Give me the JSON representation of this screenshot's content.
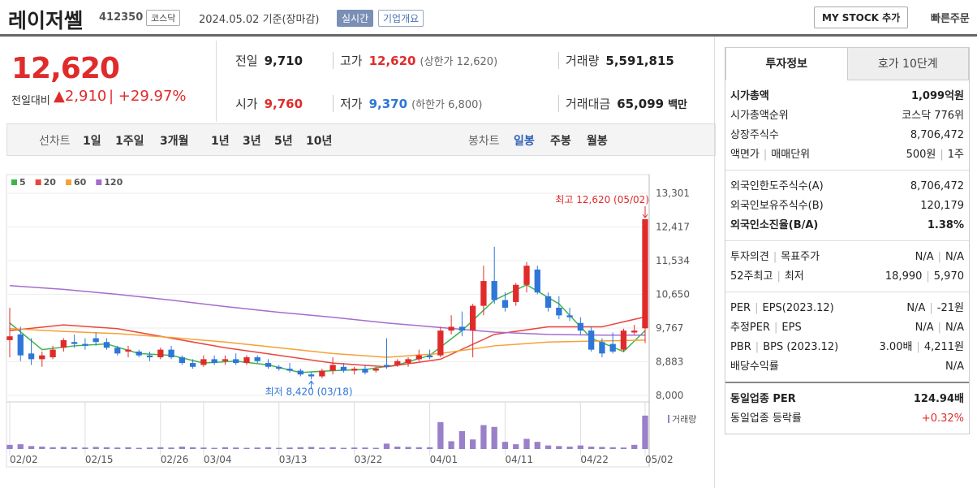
{
  "header": {
    "name": "레이저쎌",
    "code": "412350",
    "market": "코스닥",
    "date": "2024.05.02 기준(장마감)",
    "realtime": "실시간",
    "company": "기업개요",
    "mystock": "MY STOCK 추가",
    "quick": "빠른주문"
  },
  "quote": {
    "price": "12,620",
    "change_label": "전일대비",
    "change": "2,910",
    "rate": "+29.97%",
    "stats": [
      [
        {
          "label": "전일",
          "value": "9,710"
        },
        {
          "label": "고가",
          "value": "12,620",
          "note": "(상한가 12,620)"
        },
        {
          "label": "거래량",
          "value": "5,591,815"
        }
      ],
      [
        {
          "label": "시가",
          "value": "9,760"
        },
        {
          "label": "저가",
          "value": "9,370",
          "note": "(하한가 6,800)"
        },
        {
          "label": "거래대금",
          "value": "65,099",
          "unit": "백만"
        }
      ]
    ]
  },
  "tabs": {
    "line_label": "선차트",
    "line": [
      "1일",
      "1주일",
      "3개월",
      "1년",
      "3년",
      "5년",
      "10년"
    ],
    "candle_label": "봉차트",
    "candle": [
      "일봉",
      "주봉",
      "월봉"
    ]
  },
  "chart_data": {
    "type": "candlestick",
    "up_color": "#e02b2b",
    "down_color": "#2e76d8",
    "ylim": [
      8000,
      13301
    ],
    "yticks": [
      {
        "value": 8000,
        "label": "8,000"
      },
      {
        "value": 8883,
        "label": "8,883"
      },
      {
        "value": 9767,
        "label": "9,767"
      },
      {
        "value": 10650,
        "label": "10,650"
      },
      {
        "value": 11534,
        "label": "11,534"
      },
      {
        "value": 12417,
        "label": "12,417"
      },
      {
        "value": 13301,
        "label": "13,301"
      }
    ],
    "xlim": [
      0,
      59
    ],
    "xticks": [
      {
        "value": 0,
        "label": "02/02"
      },
      {
        "value": 7,
        "label": "02/15"
      },
      {
        "value": 14,
        "label": "02/26"
      },
      {
        "value": 18,
        "label": "03/04"
      },
      {
        "value": 25,
        "label": "03/13"
      },
      {
        "value": 32,
        "label": "03/22"
      },
      {
        "value": 39,
        "label": "04/01"
      },
      {
        "value": 46,
        "label": "04/11"
      },
      {
        "value": 53,
        "label": "04/22"
      },
      {
        "value": 59,
        "label": "05/02"
      }
    ],
    "ohlc": [
      [
        9450,
        10300,
        9000,
        9550
      ],
      [
        9600,
        9800,
        8900,
        9050
      ],
      [
        9100,
        9500,
        8800,
        8950
      ],
      [
        8950,
        9150,
        8750,
        9050
      ],
      [
        9000,
        9300,
        8950,
        9200
      ],
      [
        9250,
        9500,
        9150,
        9450
      ],
      [
        9400,
        9600,
        9250,
        9350
      ],
      [
        9350,
        9500,
        9200,
        9300
      ],
      [
        9500,
        9650,
        9300,
        9400
      ],
      [
        9400,
        9500,
        9200,
        9250
      ],
      [
        9250,
        9300,
        9050,
        9100
      ],
      [
        9150,
        9300,
        9000,
        9200
      ],
      [
        9150,
        9200,
        9000,
        9050
      ],
      [
        9050,
        9150,
        8900,
        9000
      ],
      [
        9000,
        9250,
        8950,
        9200
      ],
      [
        9200,
        9300,
        8950,
        9000
      ],
      [
        9000,
        9050,
        8800,
        8850
      ],
      [
        8850,
        8950,
        8700,
        8750
      ],
      [
        8800,
        9050,
        8750,
        8950
      ],
      [
        8950,
        9050,
        8800,
        8850
      ],
      [
        8900,
        9050,
        8800,
        8950
      ],
      [
        8950,
        9100,
        8800,
        8850
      ],
      [
        8850,
        9050,
        8800,
        9000
      ],
      [
        9000,
        9050,
        8850,
        8900
      ],
      [
        8850,
        8950,
        8700,
        8750
      ],
      [
        8750,
        8800,
        8650,
        8700
      ],
      [
        8700,
        8850,
        8600,
        8650
      ],
      [
        8650,
        8700,
        8500,
        8550
      ],
      [
        8550,
        8600,
        8420,
        8500
      ],
      [
        8500,
        8700,
        8450,
        8650
      ],
      [
        8650,
        9000,
        8550,
        8800
      ],
      [
        8750,
        8850,
        8600,
        8650
      ],
      [
        8650,
        8750,
        8550,
        8700
      ],
      [
        8700,
        8800,
        8550,
        8600
      ],
      [
        8650,
        8750,
        8600,
        8700
      ],
      [
        8800,
        9500,
        8700,
        8750
      ],
      [
        8800,
        8950,
        8750,
        8900
      ],
      [
        8850,
        9000,
        8750,
        8950
      ],
      [
        8950,
        9200,
        8900,
        9050
      ],
      [
        9050,
        9200,
        8950,
        9000
      ],
      [
        9050,
        9800,
        9000,
        9700
      ],
      [
        9700,
        10100,
        9600,
        9800
      ],
      [
        9800,
        10200,
        9550,
        9700
      ],
      [
        9700,
        10400,
        9000,
        10350
      ],
      [
        10350,
        11400,
        10100,
        11000
      ],
      [
        11000,
        11900,
        10400,
        10500
      ],
      [
        10500,
        10700,
        10200,
        10300
      ],
      [
        10450,
        10950,
        10350,
        10900
      ],
      [
        10900,
        11500,
        10700,
        11400
      ],
      [
        11300,
        11400,
        10650,
        10700
      ],
      [
        10600,
        10700,
        10200,
        10300
      ],
      [
        10300,
        10600,
        10000,
        10100
      ],
      [
        10100,
        10300,
        9950,
        10050
      ],
      [
        9900,
        10050,
        9600,
        9700
      ],
      [
        9700,
        9800,
        9150,
        9200
      ],
      [
        9400,
        9500,
        9000,
        9100
      ],
      [
        9350,
        9650,
        9100,
        9150
      ],
      [
        9200,
        9750,
        9150,
        9700
      ],
      [
        9650,
        9850,
        9600,
        9700
      ],
      [
        9760,
        12620,
        9370,
        12620
      ]
    ],
    "series": [
      {
        "name": "5",
        "color": "#3cb64b",
        "x": [
          0,
          3,
          6,
          9,
          12,
          15,
          18,
          21,
          24,
          27,
          30,
          33,
          36,
          39,
          42,
          45,
          48,
          51,
          54,
          57,
          59
        ],
        "values": [
          9900,
          9200,
          9300,
          9350,
          9100,
          9050,
          8850,
          8900,
          8800,
          8600,
          8650,
          8680,
          8800,
          9050,
          9700,
          10500,
          10900,
          10400,
          9500,
          9150,
          9700
        ]
      },
      {
        "name": "20",
        "color": "#e8463d",
        "x": [
          0,
          5,
          10,
          15,
          20,
          25,
          30,
          35,
          40,
          45,
          50,
          55,
          59
        ],
        "values": [
          9700,
          9850,
          9750,
          9500,
          9250,
          9050,
          8850,
          8750,
          8950,
          9600,
          9800,
          9800,
          10060
        ]
      },
      {
        "name": "60",
        "color": "#f7a035",
        "x": [
          0,
          5,
          10,
          15,
          20,
          25,
          30,
          35,
          40,
          45,
          50,
          55,
          59
        ],
        "values": [
          9750,
          9680,
          9620,
          9520,
          9400,
          9250,
          9100,
          9000,
          9100,
          9300,
          9400,
          9430,
          9450
        ]
      },
      {
        "name": "120",
        "color": "#a46cd0",
        "x": [
          0,
          5,
          10,
          15,
          20,
          25,
          30,
          35,
          40,
          45,
          50,
          55,
          59
        ],
        "values": [
          10880,
          10780,
          10650,
          10500,
          10330,
          10180,
          10050,
          9900,
          9780,
          9660,
          9600,
          9580,
          9580
        ]
      }
    ],
    "volume": {
      "name": "거래량",
      "color": "#9a7fc9",
      "lim": [
        0,
        7200000
      ],
      "values": [
        700000,
        800000,
        500000,
        400000,
        300000,
        350000,
        300000,
        250000,
        350000,
        300000,
        250000,
        300000,
        200000,
        250000,
        300000,
        250000,
        400000,
        300000,
        250000,
        200000,
        300000,
        250000,
        200000,
        250000,
        300000,
        200000,
        250000,
        300000,
        350000,
        250000,
        300000,
        200000,
        250000,
        250000,
        200000,
        900000,
        400000,
        350000,
        300000,
        300000,
        4500000,
        1300000,
        3000000,
        1600000,
        4000000,
        3700000,
        1200000,
        800000,
        1700000,
        1200000,
        600000,
        500000,
        400000,
        600000,
        400000,
        350000,
        300000,
        250000,
        700000,
        5591815
      ]
    },
    "annotations": [
      {
        "text": "최고 12,620 (05/02)",
        "x": 59,
        "y": 12620
      },
      {
        "text": "최저 8,420 (03/18)",
        "x": 28,
        "y": 8420
      }
    ]
  },
  "panel": {
    "tabs": [
      "투자정보",
      "호가 10단계"
    ],
    "sections": [
      [
        {
          "label": [
            "시가총액"
          ],
          "value": [
            "1,099억원"
          ],
          "bold": true
        },
        {
          "label": [
            "시가총액순위"
          ],
          "value": [
            "코스닥 776위"
          ]
        },
        {
          "label": [
            "상장주식수"
          ],
          "value": [
            "8,706,472"
          ]
        },
        {
          "label": [
            "액면가",
            "매매단위"
          ],
          "value": [
            "500원",
            "1주"
          ]
        }
      ],
      [
        {
          "label": [
            "외국인한도주식수(A)"
          ],
          "value": [
            "8,706,472"
          ]
        },
        {
          "label": [
            "외국인보유주식수(B)"
          ],
          "value": [
            "120,179"
          ]
        },
        {
          "label": [
            "외국인소진율(B/A)"
          ],
          "value": [
            "1.38%"
          ],
          "bold": true
        }
      ],
      [
        {
          "label": [
            "투자의견",
            "목표주가"
          ],
          "value": [
            "N/A",
            "N/A"
          ]
        },
        {
          "label": [
            "52주최고",
            "최저"
          ],
          "value": [
            "18,990",
            "5,970"
          ]
        }
      ],
      [
        {
          "label": [
            "PER",
            "EPS(2023.12)"
          ],
          "value": [
            "N/A",
            "-21원"
          ]
        },
        {
          "label": [
            "추정PER",
            "EPS"
          ],
          "value": [
            "N/A",
            "N/A"
          ]
        },
        {
          "label": [
            "PBR",
            "BPS (2023.12)"
          ],
          "value": [
            "3.00배",
            "4,211원"
          ]
        },
        {
          "label": [
            "배당수익률"
          ],
          "value": [
            "N/A"
          ]
        }
      ],
      [
        {
          "label": [
            "동일업종 PER"
          ],
          "value": [
            "124.94배"
          ],
          "bold": true
        },
        {
          "label": [
            "동일업종 등락률"
          ],
          "value": [
            "+0.32%"
          ],
          "red": true
        }
      ]
    ]
  }
}
